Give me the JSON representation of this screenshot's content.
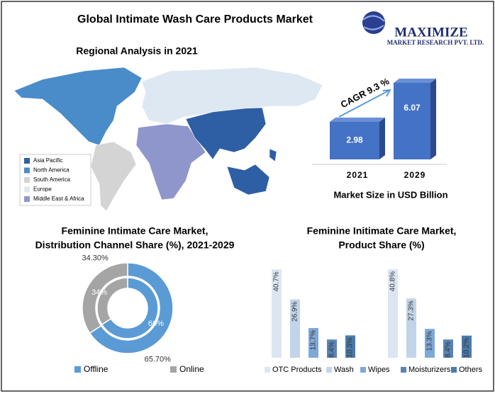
{
  "title": "Global Intimate Wash Care Products Market",
  "logo": {
    "name": "MAXIMIZE",
    "subtitle": "MARKET RESEARCH PVT. LTD."
  },
  "map": {
    "title": "Regional Analysis in 2021",
    "legend": [
      {
        "name": "Asia Pacific",
        "color": "#2e5fa4"
      },
      {
        "name": "North America",
        "color": "#4a8cc9"
      },
      {
        "name": "South America",
        "color": "#d4d4d4"
      },
      {
        "name": "Europe",
        "color": "#dde8f2"
      },
      {
        "name": "Middle East & Africa",
        "color": "#8f96cc"
      }
    ]
  },
  "chart_data": [
    {
      "type": "bar",
      "categories": [
        "2021",
        "2029"
      ],
      "values": [
        2.98,
        6.07
      ],
      "color": "#4472c4",
      "annotation": "CAGR 9.3 %",
      "xlabel": "Market Size in USD Billion"
    },
    {
      "type": "donut",
      "title": [
        "Feminine Intimate Care Market,",
        "Distribution Channel Share (%), 2021-2029"
      ],
      "categories": [
        "Offline",
        "Online"
      ],
      "colors": [
        "#5b9bd5",
        "#a5a5a5"
      ],
      "rings": [
        {
          "values": [
            65.7,
            34.3
          ],
          "value_labels": [
            "65.70%",
            "34.30%"
          ]
        },
        {
          "values": [
            66,
            34
          ],
          "value_labels": [
            "66%",
            "34%"
          ]
        }
      ]
    },
    {
      "type": "grouped-bar",
      "title": [
        "Feminine Initimate Care Market,",
        "Product Share (%)"
      ],
      "categories": [
        null,
        null
      ],
      "series": [
        {
          "name": "OTC Products",
          "color": "#dce6f2",
          "values": [
            40.7,
            40.8
          ],
          "value_labels": [
            "40.7%",
            "40.8%"
          ]
        },
        {
          "name": "Wash",
          "color": "#c2d4ea",
          "values": [
            26.9,
            27.3
          ],
          "value_labels": [
            "26.9%",
            "27.3%"
          ]
        },
        {
          "name": "Wipes",
          "color": "#7ea8d8",
          "values": [
            13.7,
            13.3
          ],
          "value_labels": [
            "13.7%",
            "13.3%"
          ]
        },
        {
          "name": "Moisturizers",
          "color": "#5a84b4",
          "values": [
            8.4,
            8.4
          ],
          "value_labels": [
            "8.4%",
            "8.4%"
          ]
        },
        {
          "name": "Others",
          "color": "#4c7aa8",
          "values": [
            10.3,
            10.2
          ],
          "value_labels": [
            "10.3%",
            "10.2%"
          ]
        }
      ]
    }
  ]
}
